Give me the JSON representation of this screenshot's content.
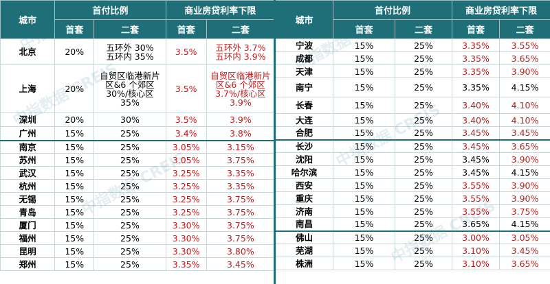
{
  "header": {
    "city": "城市",
    "down_payment": "首付比例",
    "rate_floor": "商业房贷利率下限",
    "first": "首套",
    "second": "二套"
  },
  "left_rows": [
    {
      "city": "北京",
      "dp1": "20%",
      "dp2": "五环外 30%\n五环内 35%",
      "r1": "3.5%",
      "r2": "五环外 3.7%\n五环内 3.9%",
      "r1_red": true,
      "r2_red": true
    },
    {
      "city": "上海",
      "dp1": "20%",
      "dp2": "自贸区临港新片区&6 个郊区 30%/核心区 35%",
      "r1": "3.5%",
      "r2": "自贸区临港新片区&6 个郊区 3.7%/核心区 3.9%",
      "r1_red": true,
      "r2_red": true
    },
    {
      "city": "深圳",
      "dp1": "20%",
      "dp2": "30%",
      "r1": "3.5%",
      "r2": "3.9%",
      "r1_red": true,
      "r2_red": true
    },
    {
      "city": "广州",
      "dp1": "15%",
      "dp2": "25%",
      "r1": "3.4%",
      "r2": "3.8%",
      "r1_red": true,
      "r2_red": true
    },
    {
      "city": "南京",
      "dp1": "15%",
      "dp2": "25%",
      "r1": "3.05%",
      "r2": "3.15%",
      "r1_red": true,
      "r2_red": true
    },
    {
      "city": "苏州",
      "dp1": "15%",
      "dp2": "25%",
      "r1": "3.05%",
      "r2": "3.75%",
      "r1_red": true,
      "r2_red": true
    },
    {
      "city": "武汉",
      "dp1": "15%",
      "dp2": "25%",
      "r1": "3.25%",
      "r2": "3.35%",
      "r1_red": true,
      "r2_red": true
    },
    {
      "city": "杭州",
      "dp1": "15%",
      "dp2": "25%",
      "r1": "3.25%",
      "r2": "3.35%",
      "r1_red": true,
      "r2_red": true
    },
    {
      "city": "无锡",
      "dp1": "15%",
      "dp2": "25%",
      "r1": "3.25%",
      "r2": "3.75%",
      "r1_red": true,
      "r2_red": true
    },
    {
      "city": "青岛",
      "dp1": "15%",
      "dp2": "25%",
      "r1": "3.25%",
      "r2": "3.75%",
      "r1_red": true,
      "r2_red": true
    },
    {
      "city": "厦门",
      "dp1": "15%",
      "dp2": "25%",
      "r1": "3.30%",
      "r2": "3.75%",
      "r1_red": true,
      "r2_red": true
    },
    {
      "city": "福州",
      "dp1": "15%",
      "dp2": "25%",
      "r1": "3.30%",
      "r2": "3.75%",
      "r1_red": true,
      "r2_red": true
    },
    {
      "city": "昆明",
      "dp1": "15%",
      "dp2": "25%",
      "r1": "3.30%",
      "r2": "3.80%",
      "r1_red": true,
      "r2_red": true
    },
    {
      "city": "郑州",
      "dp1": "15%",
      "dp2": "25%",
      "r1": "3.35%",
      "r2": "3.45%",
      "r1_red": true,
      "r2_red": true
    }
  ],
  "right_rows": [
    {
      "city": "宁波",
      "dp1": "15%",
      "dp2": "25%",
      "r1": "3.35%",
      "r2": "3.55%",
      "r1_red": true,
      "r2_red": true
    },
    {
      "city": "成都",
      "dp1": "15%",
      "dp2": "25%",
      "r1": "3.35%",
      "r2": "3.65%",
      "r1_red": true,
      "r2_red": true
    },
    {
      "city": "天津",
      "dp1": "15%",
      "dp2": "25%",
      "r1": "3.35%",
      "r2": "3.90%",
      "r1_red": true,
      "r2_red": true
    },
    {
      "city": "南宁",
      "dp1": "15%",
      "dp2": "25%",
      "r1": "3.35%",
      "r2": "4.15%",
      "r1_red": false,
      "r2_red": false
    },
    {
      "city": "长春",
      "dp1": "15%",
      "dp2": "25%",
      "r1": "3.40%",
      "r2": "4.10%",
      "r1_red": true,
      "r2_red": true
    },
    {
      "city": "大连",
      "dp1": "15%",
      "dp2": "25%",
      "r1": "3.40%",
      "r2": "4.10%",
      "r1_red": true,
      "r2_red": true
    },
    {
      "city": "合肥",
      "dp1": "15%",
      "dp2": "25%",
      "r1": "3.45%",
      "r2": "3.45%",
      "r1_red": true,
      "r2_red": true
    },
    {
      "city": "长沙",
      "dp1": "15%",
      "dp2": "25%",
      "r1": "3.45%",
      "r2": "3.65%",
      "r1_red": true,
      "r2_red": true
    },
    {
      "city": "沈阳",
      "dp1": "15%",
      "dp2": "25%",
      "r1": "3.45%",
      "r2": "3.90%",
      "r1_red": false,
      "r2_red": true
    },
    {
      "city": "哈尔滨",
      "dp1": "15%",
      "dp2": "25%",
      "r1": "3.45%",
      "r2": "4.15%",
      "r1_red": false,
      "r2_red": false
    },
    {
      "city": "西安",
      "dp1": "15%",
      "dp2": "25%",
      "r1": "3.55%",
      "r2": "3.90%",
      "r1_red": true,
      "r2_red": true
    },
    {
      "city": "重庆",
      "dp1": "15%",
      "dp2": "25%",
      "r1": "3.55%",
      "r2": "3.90%",
      "r1_red": true,
      "r2_red": true
    },
    {
      "city": "济南",
      "dp1": "15%",
      "dp2": "25%",
      "r1": "3.55%",
      "r2": "3.75%",
      "r1_red": true,
      "r2_red": true
    },
    {
      "city": "南昌",
      "dp1": "15%",
      "dp2": "25%",
      "r1": "3.65%",
      "r2": "4.15%",
      "r1_red": false,
      "r2_red": false
    },
    {
      "city": "佛山",
      "dp1": "15%",
      "dp2": "25%",
      "r1": "3.00%",
      "r2": "3.05%",
      "r1_red": true,
      "r2_red": true
    },
    {
      "city": "芜湖",
      "dp1": "15%",
      "dp2": "25%",
      "r1": "3.10%",
      "r2": "3.45%",
      "r1_red": true,
      "r2_red": true
    },
    {
      "city": "株洲",
      "dp1": "15%",
      "dp2": "25%",
      "r1": "3.10%",
      "r2": "3.65%",
      "r1_red": true,
      "r2_red": true
    }
  ],
  "watermark": "中指数据 CREIS",
  "colors": {
    "header_bg": "#1f6f78",
    "highlight_red": "#c11b1b"
  }
}
